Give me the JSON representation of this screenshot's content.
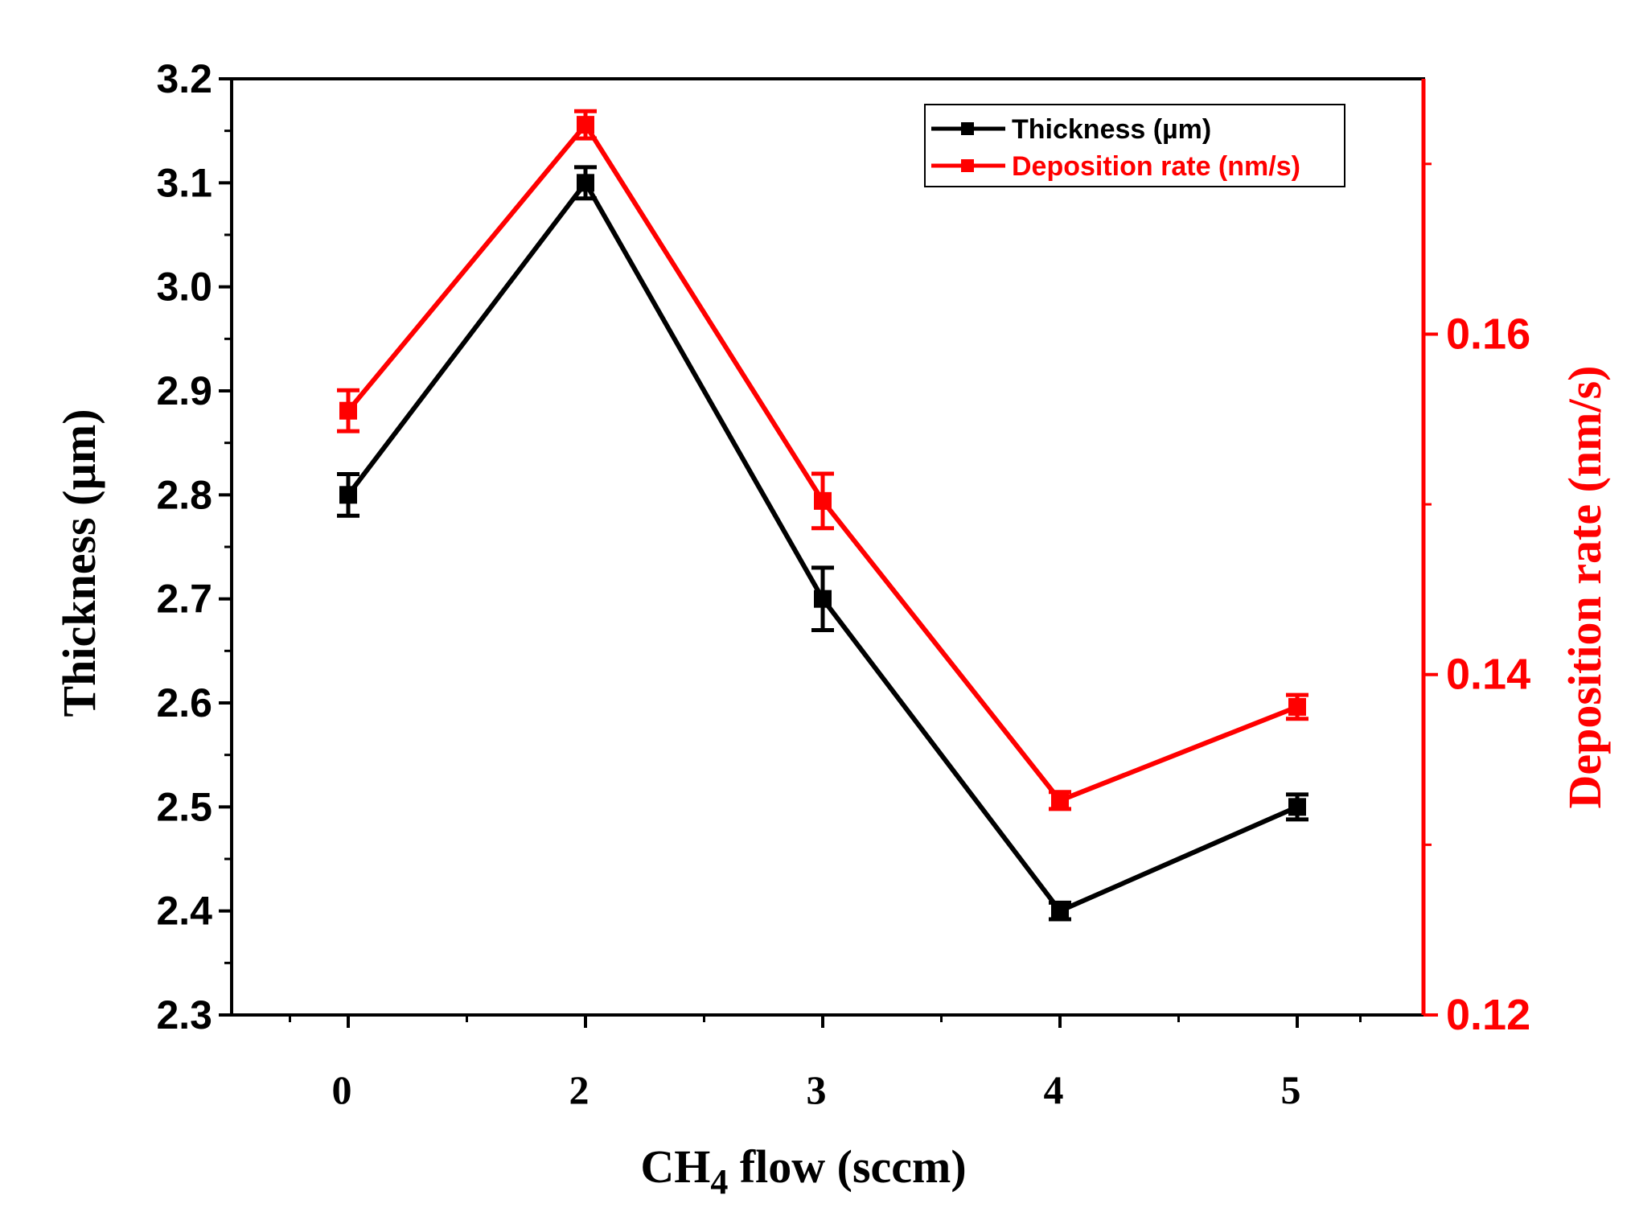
{
  "chart_data": {
    "type": "line",
    "categories": [
      "0",
      "2",
      "3",
      "4",
      "5"
    ],
    "xlabel": {
      "prefix": "CH",
      "subscript": "4",
      "suffix": " flow (sccm)"
    },
    "y_left": {
      "label": "Thickness (µm)",
      "lim": [
        2.3,
        3.2
      ],
      "ticks": [
        "2.3",
        "2.4",
        "2.5",
        "2.6",
        "2.7",
        "2.8",
        "2.9",
        "3.0",
        "3.1",
        "3.2"
      ],
      "color": "#000000"
    },
    "y_right": {
      "label": "Deposition rate (nm/s)",
      "lim": [
        0.12,
        0.175
      ],
      "ticks": [
        "0.12",
        "0.14",
        "0.16"
      ],
      "color": "#ff0000"
    },
    "series": [
      {
        "name": "Thickness (µm)",
        "axis": "left",
        "color": "#000000",
        "values": [
          2.8,
          3.1,
          2.7,
          2.4,
          2.5
        ],
        "errors": [
          0.02,
          0.015,
          0.03,
          0.008,
          0.012
        ]
      },
      {
        "name": "Deposition rate (nm/s)",
        "axis": "right",
        "color": "#ff0000",
        "values": [
          0.1555,
          0.1723,
          0.1502,
          0.1326,
          0.1381
        ],
        "errors": [
          0.0012,
          0.0008,
          0.0016,
          0.0005,
          0.0007
        ]
      }
    ],
    "legend_position": "top-right"
  }
}
